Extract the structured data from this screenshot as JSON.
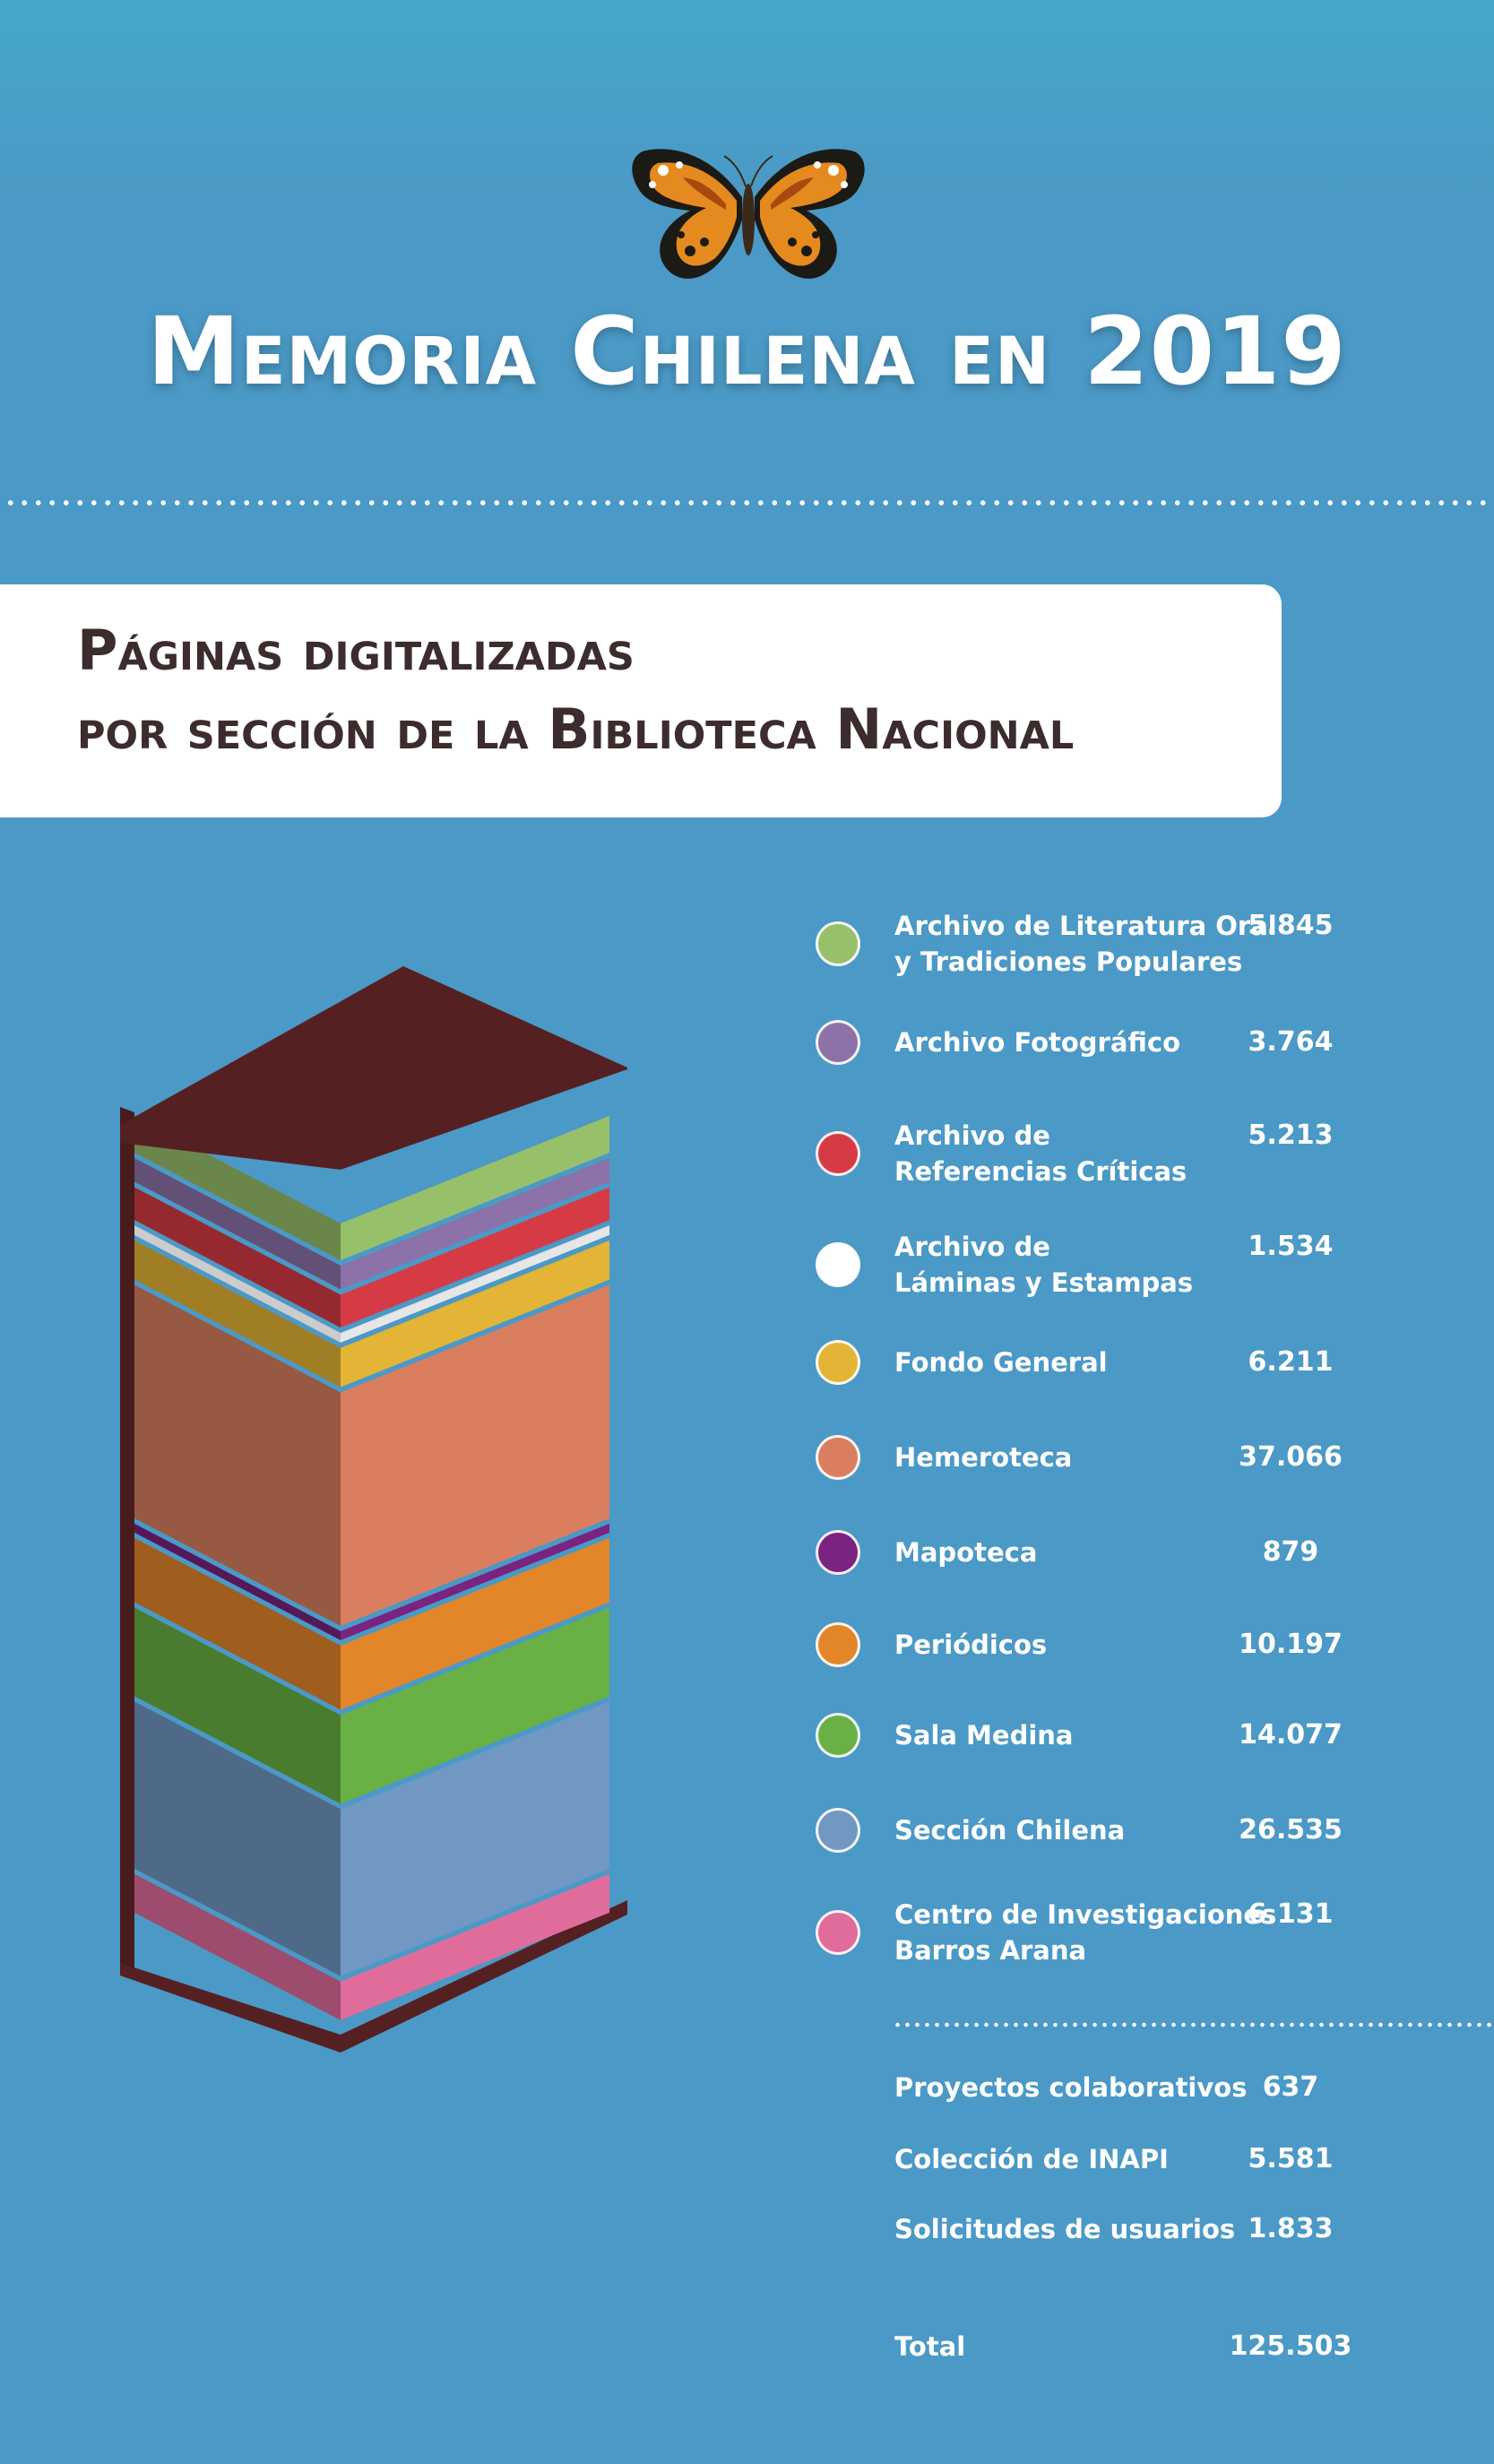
{
  "title": "Memoria Chilena en 2019",
  "subtitle_line1": "Páginas digitalizadas",
  "subtitle_line2": "por sección de la Biblioteca Nacional",
  "colors": {
    "background": "#4b99c6",
    "title_text": "#ffffff",
    "card": "#ffffff",
    "card_text": "#3c2c2e",
    "book_cover": "#552022"
  },
  "chart_data": {
    "type": "stacked-bar",
    "title": "Páginas digitalizadas por sección de la Biblioteca Nacional",
    "unit": "páginas",
    "series": [
      {
        "name": "Archivo de Literatura Oral y Tradiciones Populares",
        "label_lines": [
          "Archivo de Literatura Oral",
          "y Tradiciones Populares"
        ],
        "value": 5845,
        "display": "5.845",
        "color": "#98bf6a"
      },
      {
        "name": "Archivo Fotográfico",
        "label_lines": [
          "Archivo Fotográfico"
        ],
        "value": 3764,
        "display": "3.764",
        "color": "#8c72a8"
      },
      {
        "name": "Archivo de Referencias Críticas",
        "label_lines": [
          "Archivo de",
          "Referencias Críticas"
        ],
        "value": 5213,
        "display": "5.213",
        "color": "#d63b45"
      },
      {
        "name": "Archivo de Láminas y Estampas",
        "label_lines": [
          "Archivo de",
          "Láminas y Estampas"
        ],
        "value": 1534,
        "display": "1.534",
        "color": "#ffffff"
      },
      {
        "name": "Fondo General",
        "label_lines": [
          "Fondo General"
        ],
        "value": 6211,
        "display": "6.211",
        "color": "#e4b436"
      },
      {
        "name": "Hemeroteca",
        "label_lines": [
          "Hemeroteca"
        ],
        "value": 37066,
        "display": "37.066",
        "color": "#d97f5f"
      },
      {
        "name": "Mapoteca",
        "label_lines": [
          "Mapoteca"
        ],
        "value": 879,
        "display": "879",
        "color": "#7a2380"
      },
      {
        "name": "Periódicos",
        "label_lines": [
          "Periódicos"
        ],
        "value": 10197,
        "display": "10.197",
        "color": "#e38629"
      },
      {
        "name": "Sala Medina",
        "label_lines": [
          "Sala Medina"
        ],
        "value": 14077,
        "display": "14.077",
        "color": "#69b145"
      },
      {
        "name": "Sección Chilena",
        "label_lines": [
          "Sección Chilena"
        ],
        "value": 26535,
        "display": "26.535",
        "color": "#7197c3"
      },
      {
        "name": "Centro de Investigaciones Barros Arana",
        "label_lines": [
          "Centro de Investigaciones",
          "Barros Arana"
        ],
        "value": 6131,
        "display": "6.131",
        "color": "#e06c9c"
      }
    ],
    "extras": [
      {
        "name": "Proyectos colaborativos",
        "value": 637,
        "display": "637"
      },
      {
        "name": "Colección de INAPI",
        "value": 5581,
        "display": "5.581"
      },
      {
        "name": "Solicitudes de usuarios",
        "value": 1833,
        "display": "1.833"
      }
    ],
    "total": {
      "name": "Total",
      "value": 125503,
      "display": "125.503"
    }
  }
}
